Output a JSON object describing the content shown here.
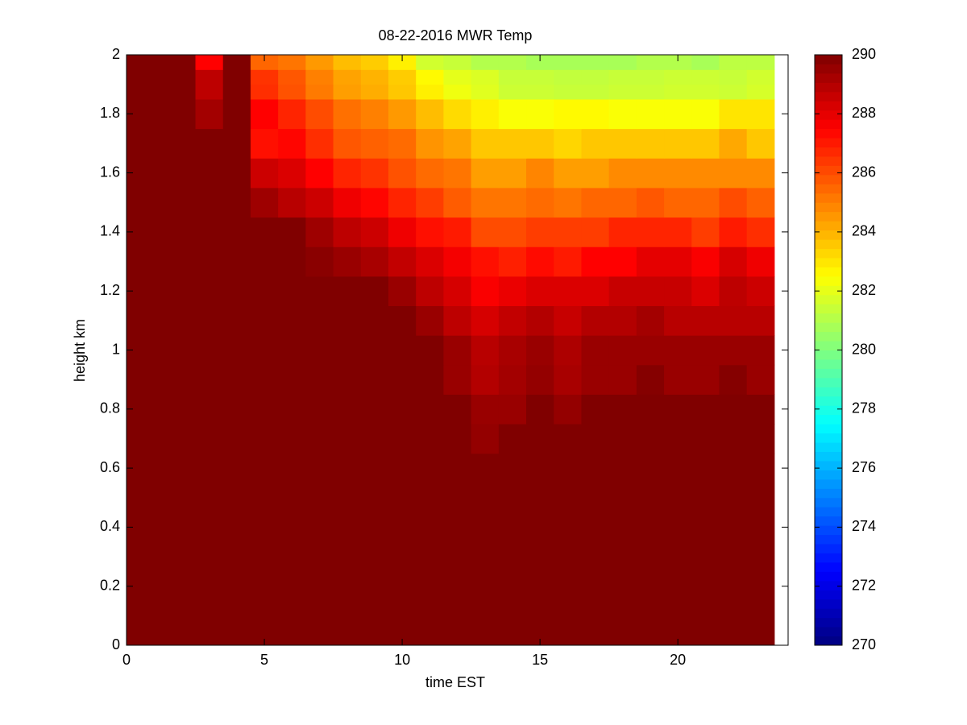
{
  "chart_data": {
    "type": "heatmap",
    "title": "08-22-2016 MWR Temp",
    "xlabel": "time EST",
    "ylabel": "height km",
    "xlim": [
      0,
      24
    ],
    "ylim": [
      0,
      2
    ],
    "xticks": [
      0,
      5,
      10,
      15,
      20
    ],
    "yticks": [
      0,
      0.2,
      0.4,
      0.6,
      0.8,
      1,
      1.2,
      1.4,
      1.6,
      1.8,
      2
    ],
    "x_edges": [
      0,
      2.5,
      3.5,
      4.5,
      5.5,
      6.5,
      7.5,
      8.5,
      9.5,
      10.5,
      11.5,
      12.5,
      13.5,
      14.5,
      15.5,
      16.5,
      17.5,
      18.5,
      19.5,
      20.5,
      21.5,
      22.5,
      23.5
    ],
    "y_edges": [
      0,
      0.65,
      0.75,
      0.85,
      0.95,
      1.05,
      1.15,
      1.25,
      1.35,
      1.45,
      1.55,
      1.65,
      1.75,
      1.85,
      1.9,
      1.95,
      2
    ],
    "colormap": "jet",
    "clim": [
      270,
      290
    ],
    "colorbar_ticks": [
      270,
      272,
      274,
      276,
      278,
      280,
      282,
      284,
      286,
      288,
      290
    ],
    "z": [
      [
        290,
        290,
        290,
        290,
        290,
        290,
        290,
        290,
        290,
        290,
        290,
        290,
        290,
        290,
        290,
        290,
        290,
        290,
        290,
        290,
        290,
        290
      ],
      [
        290,
        290,
        290,
        290,
        290,
        290,
        290,
        290,
        290,
        290,
        290,
        289.6,
        290,
        290,
        290,
        290,
        290,
        290,
        290,
        290,
        290,
        290
      ],
      [
        290,
        290,
        290,
        290,
        290,
        290,
        290,
        290,
        290,
        290,
        290,
        289.5,
        289.5,
        290,
        289.6,
        290,
        290,
        290,
        290,
        290,
        290,
        290
      ],
      [
        290,
        290,
        290,
        290,
        290,
        290,
        290,
        290,
        290,
        290,
        289.5,
        289.0,
        289.3,
        289.6,
        289.2,
        289.5,
        289.5,
        289.9,
        289.5,
        289.5,
        289.9,
        289.5
      ],
      [
        290,
        290,
        290,
        290,
        290,
        290,
        290,
        290,
        290,
        290,
        289.5,
        288.9,
        289.2,
        289.5,
        289.1,
        289.5,
        289.5,
        289.5,
        289.5,
        289.5,
        289.5,
        289.5
      ],
      [
        290,
        290,
        290,
        290,
        290,
        290,
        290,
        290,
        290,
        289.5,
        288.8,
        288.3,
        288.7,
        289,
        288.6,
        289,
        289,
        289.3,
        288.9,
        288.9,
        288.9,
        288.9
      ],
      [
        290,
        290,
        290,
        290,
        290,
        290,
        290,
        290,
        289.5,
        288.8,
        288.3,
        287.6,
        287.9,
        288.2,
        288.2,
        288.2,
        288.6,
        288.6,
        288.6,
        288.2,
        288.8,
        288.5
      ],
      [
        290,
        290,
        290,
        290,
        290,
        289.8,
        289.5,
        289.2,
        288.7,
        288.2,
        287.7,
        287.2,
        286.9,
        287.3,
        287,
        287.5,
        287.5,
        288,
        288,
        287.6,
        288.3,
        287.8
      ],
      [
        290,
        290,
        290,
        290,
        290,
        289.4,
        288.8,
        288.5,
        287.8,
        287.2,
        287,
        286,
        286,
        286.3,
        286.3,
        286.3,
        286.8,
        286.8,
        286.8,
        286.3,
        287,
        286.6
      ],
      [
        290,
        290,
        290,
        289.4,
        288.9,
        288.5,
        287.8,
        287.4,
        286.8,
        286.3,
        285.7,
        285.2,
        285.2,
        285.4,
        285.2,
        285.5,
        285.5,
        285.8,
        285.5,
        285.5,
        286,
        285.6
      ],
      [
        290,
        290,
        290,
        288.5,
        288.2,
        287.5,
        286.8,
        286.5,
        285.9,
        285.4,
        285.2,
        284.4,
        284.4,
        284.9,
        284.4,
        284.4,
        284.8,
        284.8,
        284.8,
        284.8,
        284.8,
        284.8
      ],
      [
        290,
        290,
        290,
        287.2,
        287.4,
        286.6,
        285.8,
        285.6,
        285.4,
        284.6,
        284.3,
        283.6,
        283.6,
        283.6,
        283.3,
        283.6,
        283.6,
        283.6,
        283.6,
        283.6,
        284.2,
        283.6
      ],
      [
        290,
        289.3,
        290,
        287.5,
        286.8,
        286,
        285.3,
        285,
        284.5,
        283.8,
        283.2,
        282.8,
        282.4,
        282.4,
        282.6,
        282.6,
        282.4,
        282.4,
        282.4,
        282.4,
        283,
        283
      ],
      [
        290,
        288.8,
        290,
        286.6,
        285.9,
        285.1,
        284.4,
        284.1,
        283.6,
        282.8,
        282.2,
        281.9,
        281.5,
        281.5,
        281.4,
        281.4,
        281.5,
        281.5,
        281.6,
        281.6,
        281.5,
        281.7
      ],
      [
        290,
        288.8,
        290,
        286.5,
        285.8,
        285,
        284.3,
        284,
        283.5,
        282.6,
        282,
        281.8,
        281.4,
        281.4,
        281.3,
        281.3,
        281.4,
        281.4,
        281.5,
        281.5,
        281.4,
        281.6
      ],
      [
        290,
        287.5,
        290,
        285.5,
        285.2,
        284.5,
        283.8,
        283.5,
        282.8,
        281.6,
        281.4,
        281,
        281,
        280.8,
        280.8,
        280.8,
        280.8,
        281,
        281,
        280.8,
        281.2,
        281.2
      ]
    ]
  }
}
